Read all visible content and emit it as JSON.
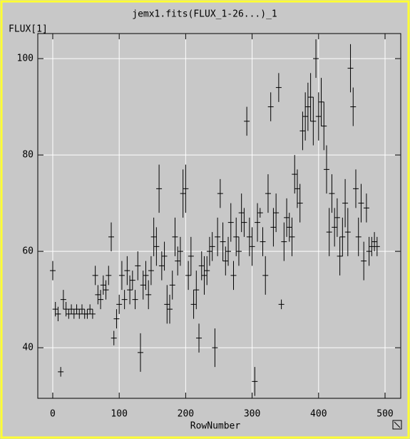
{
  "chart_data": {
    "type": "scatter",
    "title": "jemx1.fits(FLUX_1-26...)_1",
    "x_label": "RowNumber",
    "y_label": "FLUX[1]",
    "xlim": [
      -22.5,
      523.6
    ],
    "ylim": [
      29.5,
      105.2
    ],
    "xticks": [
      0,
      100,
      200,
      300,
      400,
      500
    ],
    "yticks": [
      40,
      60,
      80,
      100
    ],
    "grid": true,
    "color": "#000000",
    "x": [
      0,
      4,
      8,
      12,
      16,
      20,
      24,
      28,
      32,
      36,
      40,
      44,
      48,
      52,
      56,
      60,
      64,
      68,
      72,
      76,
      80,
      84,
      88,
      92,
      96,
      100,
      104,
      108,
      112,
      116,
      120,
      124,
      128,
      132,
      136,
      140,
      144,
      148,
      152,
      156,
      160,
      164,
      168,
      172,
      176,
      180,
      184,
      188,
      192,
      196,
      200,
      204,
      208,
      212,
      216,
      220,
      224,
      228,
      232,
      236,
      240,
      244,
      248,
      252,
      256,
      260,
      264,
      268,
      272,
      276,
      280,
      284,
      288,
      292,
      296,
      300,
      304,
      308,
      312,
      316,
      320,
      324,
      328,
      332,
      336,
      340,
      344,
      348,
      352,
      356,
      360,
      364,
      368,
      372,
      376,
      380,
      384,
      388,
      392,
      396,
      400,
      404,
      408,
      412,
      416,
      420,
      424,
      428,
      432,
      436,
      440,
      444,
      448,
      452,
      456,
      460,
      464,
      468,
      472,
      476,
      480,
      484,
      488
    ],
    "values": [
      56,
      48,
      47,
      35,
      50,
      48,
      47,
      48,
      47,
      48,
      47,
      48,
      47,
      47,
      48,
      47,
      55,
      51,
      50,
      53,
      52,
      55,
      63,
      42,
      46,
      49,
      55,
      50,
      56,
      52,
      54,
      50,
      57,
      39,
      53,
      55,
      51,
      56,
      63,
      61,
      73,
      57,
      59,
      49,
      48,
      53,
      63,
      58,
      60,
      72,
      73,
      55,
      59,
      49,
      52,
      42,
      57,
      55,
      56,
      60,
      61,
      40,
      63,
      72,
      62,
      58,
      60,
      66,
      55,
      63,
      60,
      68,
      66,
      87,
      63,
      61,
      33,
      66,
      68,
      62,
      55,
      72,
      90,
      65,
      68,
      94,
      49,
      62,
      67,
      65,
      63,
      76,
      73,
      70,
      85,
      88,
      90,
      92,
      87,
      100,
      88,
      91,
      86,
      77,
      64,
      72,
      65,
      67,
      59,
      63,
      70,
      64,
      98,
      90,
      73,
      63,
      70,
      58,
      69,
      60,
      61,
      62,
      61
    ],
    "errors": [
      2,
      1.5,
      1.5,
      1,
      2,
      1.5,
      1,
      1,
      1,
      1,
      1,
      1,
      1,
      1,
      1,
      1,
      2,
      2,
      2,
      2,
      2,
      2,
      3,
      1.5,
      2,
      2,
      3,
      2,
      3,
      3,
      2,
      2,
      3,
      4,
      3,
      3,
      3,
      3,
      4,
      4,
      5,
      3,
      3,
      4,
      3,
      3,
      4,
      3,
      3,
      5,
      5,
      3,
      4,
      3,
      4,
      3,
      3,
      4,
      3,
      3,
      3,
      4,
      4,
      3,
      4,
      3,
      3,
      4,
      3,
      4,
      3,
      4,
      3,
      3,
      4,
      4,
      3,
      4,
      1,
      3,
      4,
      4,
      3,
      4,
      4,
      3,
      1,
      4,
      4,
      3,
      4,
      4,
      4,
      4,
      4,
      5,
      5,
      5,
      5,
      4,
      5,
      5,
      5,
      5,
      5,
      4,
      4,
      4,
      4,
      4,
      5,
      5,
      5,
      4,
      4,
      4,
      4,
      4,
      3,
      3,
      2,
      2,
      2
    ]
  }
}
